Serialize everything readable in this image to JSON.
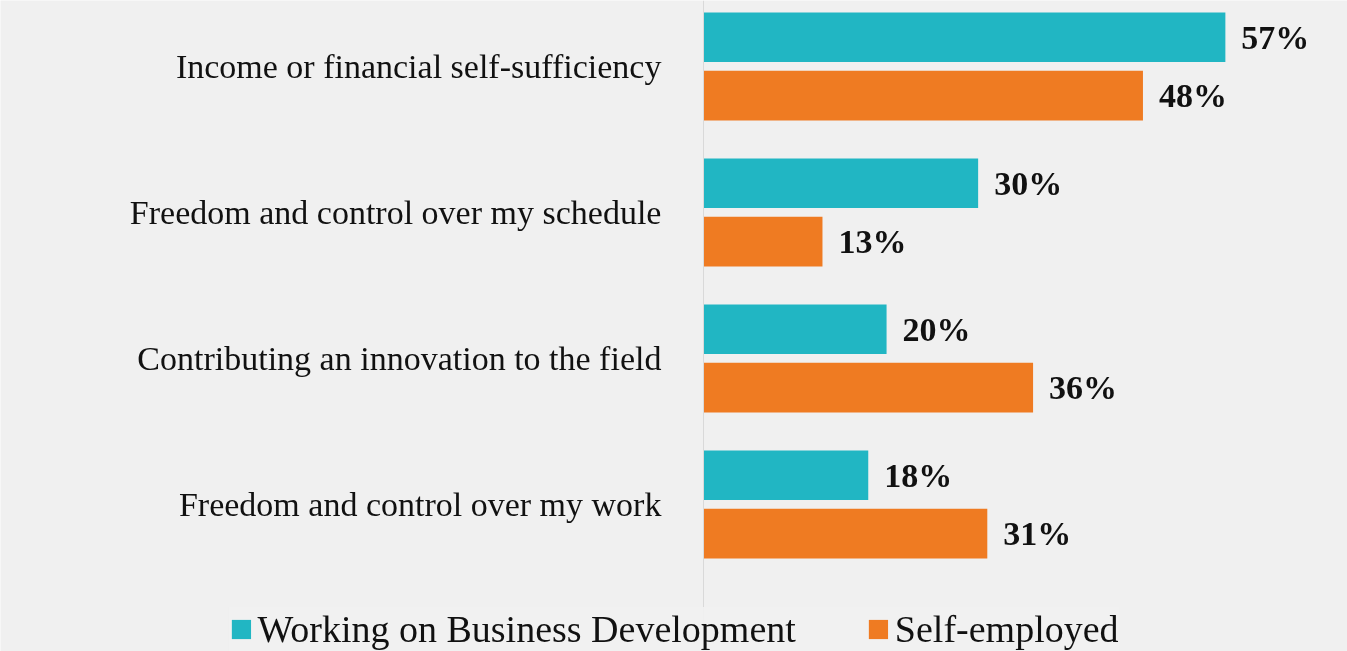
{
  "chart_data": {
    "type": "bar",
    "orientation": "horizontal",
    "categories": [
      "Income or financial self-sufficiency",
      "Freedom and control over my schedule",
      "Contributing an innovation to the field",
      "Freedom and control over my work"
    ],
    "series": [
      {
        "name": "Working on Business Development",
        "color": "#21b6c3",
        "values": [
          57,
          30,
          20,
          18
        ],
        "value_labels": [
          "57%",
          "30%",
          "20%",
          "18%"
        ]
      },
      {
        "name": "Self-employed",
        "color": "#ef7b22",
        "values": [
          48,
          13,
          36,
          31
        ],
        "value_labels": [
          "48%",
          "13%",
          "36%",
          "31%"
        ]
      }
    ],
    "legend": "bottom",
    "grid": false
  }
}
